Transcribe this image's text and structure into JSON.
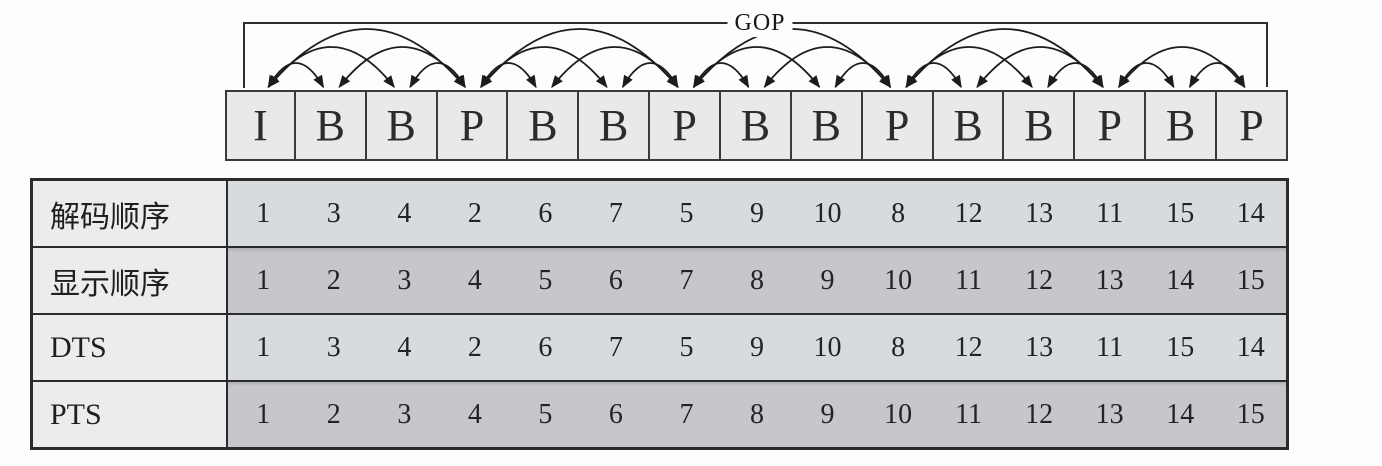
{
  "figure": {
    "gop_label": "GOP",
    "frames": [
      "I",
      "B",
      "B",
      "P",
      "B",
      "B",
      "P",
      "B",
      "B",
      "P",
      "B",
      "B",
      "P",
      "B",
      "P"
    ],
    "references": [
      {
        "a": 1,
        "b": 2
      },
      {
        "a": 1,
        "b": 3
      },
      {
        "a": 1,
        "b": 4
      },
      {
        "a": 4,
        "b": 2
      },
      {
        "a": 4,
        "b": 3
      },
      {
        "a": 4,
        "b": 5
      },
      {
        "a": 4,
        "b": 6
      },
      {
        "a": 4,
        "b": 7
      },
      {
        "a": 7,
        "b": 5
      },
      {
        "a": 7,
        "b": 6
      },
      {
        "a": 7,
        "b": 8
      },
      {
        "a": 7,
        "b": 9
      },
      {
        "a": 7,
        "b": 10
      },
      {
        "a": 10,
        "b": 8
      },
      {
        "a": 10,
        "b": 9
      },
      {
        "a": 10,
        "b": 11
      },
      {
        "a": 10,
        "b": 12
      },
      {
        "a": 10,
        "b": 13
      },
      {
        "a": 13,
        "b": 11
      },
      {
        "a": 13,
        "b": 12
      },
      {
        "a": 13,
        "b": 14
      },
      {
        "a": 13,
        "b": 15
      },
      {
        "a": 15,
        "b": 14
      }
    ]
  },
  "table": {
    "rows": [
      {
        "key": "decode-order",
        "label": "解码顺序",
        "tone": "light",
        "values": [
          "1",
          "3",
          "4",
          "2",
          "6",
          "7",
          "5",
          "9",
          "10",
          "8",
          "12",
          "13",
          "11",
          "15",
          "14"
        ]
      },
      {
        "key": "display-order",
        "label": "显示顺序",
        "tone": "dark",
        "values": [
          "1",
          "2",
          "3",
          "4",
          "5",
          "6",
          "7",
          "8",
          "9",
          "10",
          "11",
          "12",
          "13",
          "14",
          "15"
        ]
      },
      {
        "key": "dts",
        "label": "DTS",
        "tone": "light",
        "values": [
          "1",
          "3",
          "4",
          "2",
          "6",
          "7",
          "5",
          "9",
          "10",
          "8",
          "12",
          "13",
          "11",
          "15",
          "14"
        ]
      },
      {
        "key": "pts",
        "label": "PTS",
        "tone": "dark",
        "values": [
          "1",
          "2",
          "3",
          "4",
          "5",
          "6",
          "7",
          "8",
          "9",
          "10",
          "11",
          "12",
          "13",
          "14",
          "15"
        ]
      }
    ]
  },
  "colors": {
    "line": "#2e2e2e",
    "arc": "#1c1c1c",
    "box_fill": "#e9e9e9",
    "label_cell": "#ececec",
    "row_light": "#d8dbdd",
    "row_dark": "#c5c7cb"
  }
}
